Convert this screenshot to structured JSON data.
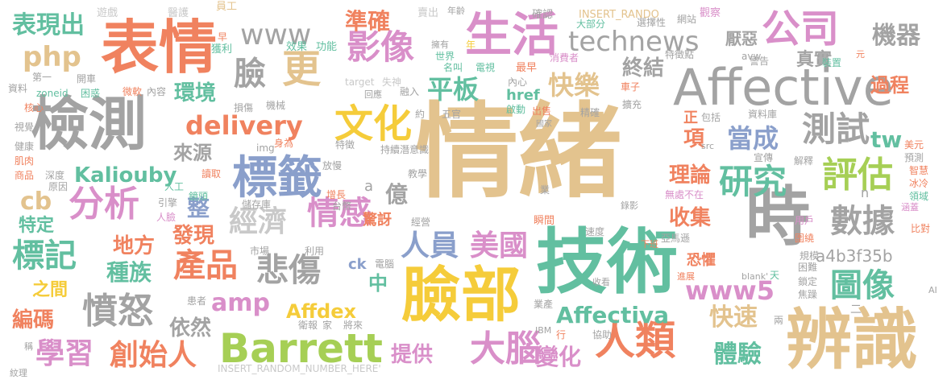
{
  "palette": {
    "tan": "#e3c38e",
    "gray": "#a3a3a3",
    "orange": "#f0825f",
    "teal": "#62bfa0",
    "blue": "#8a9fcb",
    "pink": "#d98fc9",
    "yellow": "#f5cc3a",
    "green": "#a6cf55",
    "lightgray": "#c9c9c9"
  },
  "words": [
    {
      "t": "情緒",
      "c": "tan"
    },
    {
      "t": "技術",
      "c": "teal"
    },
    {
      "t": "臉部",
      "c": "yellow"
    },
    {
      "t": "辨識",
      "c": "tan"
    },
    {
      "t": "時",
      "c": "gray"
    },
    {
      "t": "表情",
      "c": "orange"
    },
    {
      "t": "檢測",
      "c": "gray"
    },
    {
      "t": "Affective",
      "c": "gray"
    },
    {
      "t": "標籤",
      "c": "blue"
    },
    {
      "t": "Barrett",
      "c": "green"
    },
    {
      "t": "生活",
      "c": "pink"
    },
    {
      "t": "人類",
      "c": "orange"
    },
    {
      "t": "大腦",
      "c": "pink"
    },
    {
      "t": "公司",
      "c": "pink"
    },
    {
      "t": "更",
      "c": "tan"
    },
    {
      "t": "文化",
      "c": "yellow"
    },
    {
      "t": "影像",
      "c": "pink"
    },
    {
      "t": "technews",
      "c": "gray"
    },
    {
      "t": "產品",
      "c": "orange"
    },
    {
      "t": "數據",
      "c": "gray"
    },
    {
      "t": "分析",
      "c": "pink"
    },
    {
      "t": "測試",
      "c": "gray"
    },
    {
      "t": "研究",
      "c": "teal"
    },
    {
      "t": "評估",
      "c": "green"
    },
    {
      "t": "情感",
      "c": "pink"
    },
    {
      "t": "憤怒",
      "c": "gray"
    },
    {
      "t": "經濟",
      "c": "lightgray"
    },
    {
      "t": "悲傷",
      "c": "gray"
    },
    {
      "t": "學習",
      "c": "pink"
    },
    {
      "t": "創始人",
      "c": "orange"
    },
    {
      "t": "標記",
      "c": "teal"
    },
    {
      "t": "www",
      "c": "gray"
    },
    {
      "t": "臉",
      "c": "gray"
    },
    {
      "t": "www5",
      "c": "pink"
    },
    {
      "t": "delivery",
      "c": "orange"
    },
    {
      "t": "圖像",
      "c": "teal"
    },
    {
      "t": "Affectiva",
      "c": "teal"
    },
    {
      "t": "Kaliouby",
      "c": "teal"
    },
    {
      "t": "人員",
      "c": "blue"
    },
    {
      "t": "美國",
      "c": "pink"
    },
    {
      "t": "平板",
      "c": "teal"
    },
    {
      "t": "快樂",
      "c": "tan"
    },
    {
      "t": "準確",
      "c": "orange"
    },
    {
      "t": "php",
      "c": "tan"
    },
    {
      "t": "表現出",
      "c": "teal"
    },
    {
      "t": "環境",
      "c": "teal"
    },
    {
      "t": "機器",
      "c": "gray"
    },
    {
      "t": "當成",
      "c": "blue"
    },
    {
      "t": "終結",
      "c": "gray"
    },
    {
      "t": "過程",
      "c": "orange"
    },
    {
      "t": "真實",
      "c": "gray"
    },
    {
      "t": "厭惡",
      "c": "gray"
    },
    {
      "t": "Affdex",
      "c": "yellow"
    },
    {
      "t": "amp",
      "c": "pink"
    },
    {
      "t": "快速",
      "c": "tan"
    },
    {
      "t": "體驗",
      "c": "teal"
    },
    {
      "t": "變化",
      "c": "pink"
    },
    {
      "t": "提供",
      "c": "pink"
    },
    {
      "t": "理論",
      "c": "orange"
    },
    {
      "t": "收集",
      "c": "orange"
    },
    {
      "t": "種族",
      "c": "teal"
    },
    {
      "t": "地方",
      "c": "orange"
    },
    {
      "t": "發現",
      "c": "orange"
    },
    {
      "t": "編碼",
      "c": "orange"
    },
    {
      "t": "來源",
      "c": "gray"
    },
    {
      "t": "依然",
      "c": "gray"
    },
    {
      "t": "億",
      "c": "gray"
    },
    {
      "t": "整",
      "c": "blue"
    },
    {
      "t": "cb",
      "c": "tan"
    },
    {
      "t": "特定",
      "c": "teal"
    },
    {
      "t": "之間",
      "c": "yellow"
    },
    {
      "t": "中",
      "c": "teal"
    },
    {
      "t": "tw",
      "c": "teal"
    },
    {
      "t": "項",
      "c": "orange"
    },
    {
      "t": "正",
      "c": "orange"
    },
    {
      "t": "a4b3f35b",
      "c": "gray"
    },
    {
      "t": "href",
      "c": "teal"
    },
    {
      "t": "ck",
      "c": "blue"
    },
    {
      "t": "恐懼",
      "c": "orange"
    },
    {
      "t": "驚訝",
      "c": "orange"
    },
    {
      "t": "INSERT_RANDOM_NUMBER_HERE'",
      "c": "lightgray"
    },
    {
      "t": "INSERT_RANDO",
      "c": "tan"
    },
    {
      "t": "遊戲",
      "c": "lightgray"
    },
    {
      "t": "醫護",
      "c": "lightgray"
    },
    {
      "t": "員工",
      "c": "tan"
    },
    {
      "t": "賣出",
      "c": "lightgray"
    },
    {
      "t": "年齡",
      "c": "gray"
    },
    {
      "t": "確認",
      "c": "gray"
    },
    {
      "t": "網站",
      "c": "gray"
    },
    {
      "t": "觀察",
      "c": "pink"
    },
    {
      "t": "大部分",
      "c": "teal"
    },
    {
      "t": "選擇性",
      "c": "gray"
    },
    {
      "t": "警告",
      "c": "gray"
    },
    {
      "t": "特徵點",
      "c": "gray"
    },
    {
      "t": "早",
      "c": "orange"
    },
    {
      "t": "獲利",
      "c": "teal"
    },
    {
      "t": "效果",
      "c": "teal"
    },
    {
      "t": "功能",
      "c": "teal"
    },
    {
      "t": "擁有",
      "c": "gray"
    },
    {
      "t": "名叫",
      "c": "teal"
    },
    {
      "t": "世界",
      "c": "teal"
    },
    {
      "t": "電視",
      "c": "teal"
    },
    {
      "t": "最早",
      "c": "orange"
    },
    {
      "t": "消費者",
      "c": "pink"
    },
    {
      "t": "avw",
      "c": "gray"
    },
    {
      "t": "裝置",
      "c": "teal"
    },
    {
      "t": "元",
      "c": "orange"
    },
    {
      "t": "資料",
      "c": "gray"
    },
    {
      "t": "第一",
      "c": "gray"
    },
    {
      "t": "開車",
      "c": "gray"
    },
    {
      "t": "zoneid",
      "c": "teal"
    },
    {
      "t": "困惑",
      "c": "teal"
    },
    {
      "t": "微軟",
      "c": "orange"
    },
    {
      "t": "內容",
      "c": "gray"
    },
    {
      "t": "target",
      "c": "lightgray"
    },
    {
      "t": "失神",
      "c": "lightgray"
    },
    {
      "t": "內心",
      "c": "gray"
    },
    {
      "t": "車子",
      "c": "orange"
    },
    {
      "t": "核心",
      "c": "orange"
    },
    {
      "t": "損傷",
      "c": "gray"
    },
    {
      "t": "機械",
      "c": "gray"
    },
    {
      "t": "回應",
      "c": "gray"
    },
    {
      "t": "融入",
      "c": "gray"
    },
    {
      "t": "出售",
      "c": "orange"
    },
    {
      "t": "精確",
      "c": "gray"
    },
    {
      "t": "擴充",
      "c": "gray"
    },
    {
      "t": "五官",
      "c": "gray"
    },
    {
      "t": "約",
      "c": "gray"
    },
    {
      "t": "啟動",
      "c": "teal"
    },
    {
      "t": "國家",
      "c": "gray"
    },
    {
      "t": "包括",
      "c": "gray"
    },
    {
      "t": "資料庫",
      "c": "gray"
    },
    {
      "t": "視覺",
      "c": "gray"
    },
    {
      "t": "健康",
      "c": "gray"
    },
    {
      "t": "肌肉",
      "c": "orange"
    },
    {
      "t": "商品",
      "c": "orange"
    },
    {
      "t": "深度",
      "c": "gray"
    },
    {
      "t": "原因",
      "c": "gray"
    },
    {
      "t": "img",
      "c": "gray"
    },
    {
      "t": "身為",
      "c": "orange"
    },
    {
      "t": "特徵",
      "c": "gray"
    },
    {
      "t": "持續潛意識",
      "c": "gray"
    },
    {
      "t": "src",
      "c": "gray"
    },
    {
      "t": "宣傳",
      "c": "gray"
    },
    {
      "t": "解釋",
      "c": "gray"
    },
    {
      "t": "美元",
      "c": "orange"
    },
    {
      "t": "預測",
      "c": "gray"
    },
    {
      "t": "智慧",
      "c": "orange"
    },
    {
      "t": "冰冷",
      "c": "orange"
    },
    {
      "t": "領域",
      "c": "teal"
    },
    {
      "t": "讀取",
      "c": "orange"
    },
    {
      "t": "放慢",
      "c": "gray"
    },
    {
      "t": "教學",
      "c": "gray"
    },
    {
      "t": "增長",
      "c": "orange"
    },
    {
      "t": "儲存庫",
      "c": "gray"
    },
    {
      "t": "台幣",
      "c": "gray"
    },
    {
      "t": "業",
      "c": "gray"
    },
    {
      "t": "經營",
      "c": "gray"
    },
    {
      "t": "錄影",
      "c": "gray"
    },
    {
      "t": "無處不在",
      "c": "pink"
    },
    {
      "t": "用戶",
      "c": "pink"
    },
    {
      "t": "圍繞",
      "c": "orange"
    },
    {
      "t": "比對",
      "c": "orange"
    },
    {
      "t": "引擎",
      "c": "gray"
    },
    {
      "t": "鏡頭",
      "c": "teal"
    },
    {
      "t": "人工",
      "c": "teal"
    },
    {
      "t": "人臉",
      "c": "pink"
    },
    {
      "t": "市場",
      "c": "gray"
    },
    {
      "t": "利用",
      "c": "gray"
    },
    {
      "t": "瞬間",
      "c": "orange"
    },
    {
      "t": "速度",
      "c": "gray"
    },
    {
      "t": "下班",
      "c": "orange"
    },
    {
      "t": "亞馬遜",
      "c": "gray"
    },
    {
      "t": "規模",
      "c": "gray"
    },
    {
      "t": "困難",
      "c": "gray"
    },
    {
      "t": "鎖定",
      "c": "gray"
    },
    {
      "t": "焦躁",
      "c": "gray"
    },
    {
      "t": "進展",
      "c": "orange"
    },
    {
      "t": "blank'",
      "c": "gray"
    },
    {
      "t": "涵蓋",
      "c": "pink"
    },
    {
      "t": "天",
      "c": "teal"
    },
    {
      "t": "電腦",
      "c": "gray"
    },
    {
      "t": "收看",
      "c": "gray"
    },
    {
      "t": "患者",
      "c": "gray"
    },
    {
      "t": "業產",
      "c": "gray"
    },
    {
      "t": "衛報",
      "c": "gray"
    },
    {
      "t": "家",
      "c": "gray"
    },
    {
      "t": "將來",
      "c": "gray"
    },
    {
      "t": "IBM",
      "c": "gray"
    },
    {
      "t": "行",
      "c": "orange"
    },
    {
      "t": "協助",
      "c": "gray"
    },
    {
      "t": "AI",
      "c": "gray"
    },
    {
      "t": "稱",
      "c": "gray"
    },
    {
      "t": "紋理",
      "c": "gray"
    },
    {
      "t": "兩",
      "c": "gray"
    },
    {
      "t": "n",
      "c": "gray"
    },
    {
      "t": "a",
      "c": "gray"
    },
    {
      "t": "年",
      "c": "yellow"
    },
    {
      "t": "二",
      "c": "gray"
    }
  ]
}
